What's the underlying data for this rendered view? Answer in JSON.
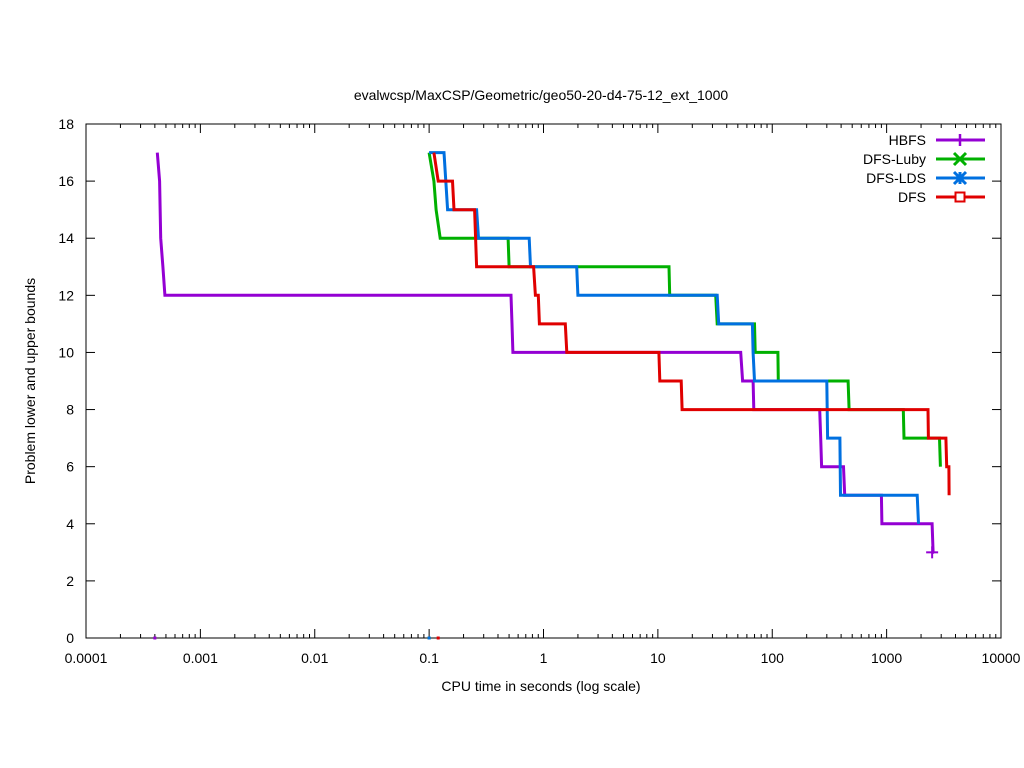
{
  "chart_data": {
    "type": "line",
    "title": "evalwcsp/MaxCSP/Geometric/geo50-20-d4-75-12_ext_1000",
    "xlabel": "CPU time in seconds (log scale)",
    "ylabel": "Problem lower and upper bounds",
    "xscale": "log",
    "xlim": [
      0.0001,
      10000
    ],
    "ylim": [
      0,
      18
    ],
    "x_ticks": [
      {
        "value": 0.0001,
        "label": "0.0001"
      },
      {
        "value": 0.001,
        "label": "0.001"
      },
      {
        "value": 0.01,
        "label": "0.01"
      },
      {
        "value": 0.1,
        "label": "0.1"
      },
      {
        "value": 1,
        "label": "1"
      },
      {
        "value": 10,
        "label": "10"
      },
      {
        "value": 100,
        "label": "100"
      },
      {
        "value": 1000,
        "label": "1000"
      },
      {
        "value": 10000,
        "label": "10000"
      }
    ],
    "y_ticks": [
      {
        "value": 0,
        "label": "0"
      },
      {
        "value": 2,
        "label": "2"
      },
      {
        "value": 4,
        "label": "4"
      },
      {
        "value": 6,
        "label": "6"
      },
      {
        "value": 8,
        "label": "8"
      },
      {
        "value": 10,
        "label": "10"
      },
      {
        "value": 12,
        "label": "12"
      },
      {
        "value": 14,
        "label": "14"
      },
      {
        "value": 16,
        "label": "16"
      },
      {
        "value": 18,
        "label": "18"
      }
    ],
    "legend_position": "top-right",
    "grid": false,
    "series": [
      {
        "name": "HBFS",
        "color": "#9400d3",
        "marker": "plus",
        "lower_bound": {
          "x": 0.0004,
          "y": 0
        },
        "end_marker": {
          "x": 2500,
          "y": 3
        },
        "steps": [
          [
            0.00042,
            17
          ],
          [
            0.00044,
            16
          ],
          [
            0.00045,
            14
          ],
          [
            0.00047,
            13
          ],
          [
            0.00049,
            12
          ],
          [
            0.52,
            12
          ],
          [
            0.53,
            11
          ],
          [
            0.54,
            10
          ],
          [
            53,
            10
          ],
          [
            55,
            9
          ],
          [
            68,
            9
          ],
          [
            69,
            8
          ],
          [
            260,
            8
          ],
          [
            265,
            7
          ],
          [
            270,
            6
          ],
          [
            420,
            6
          ],
          [
            430,
            5
          ],
          [
            900,
            5
          ],
          [
            910,
            4
          ],
          [
            2500,
            4
          ],
          [
            2550,
            3
          ],
          [
            2600,
            3
          ]
        ]
      },
      {
        "name": "DFS-Luby",
        "color": "#00b000",
        "marker": "x",
        "lower_bound": {
          "x": 0.1,
          "y": 0
        },
        "steps": [
          [
            0.1,
            17
          ],
          [
            0.11,
            16
          ],
          [
            0.115,
            15
          ],
          [
            0.125,
            14
          ],
          [
            0.49,
            14
          ],
          [
            0.5,
            13
          ],
          [
            12.5,
            13
          ],
          [
            12.7,
            12
          ],
          [
            32,
            12
          ],
          [
            33,
            11
          ],
          [
            70,
            11
          ],
          [
            71,
            10
          ],
          [
            112,
            10
          ],
          [
            113,
            9
          ],
          [
            460,
            9
          ],
          [
            470,
            8
          ],
          [
            1400,
            8
          ],
          [
            1420,
            7
          ],
          [
            2900,
            7
          ],
          [
            2950,
            6
          ]
        ]
      },
      {
        "name": "DFS-LDS",
        "color": "#0070e0",
        "marker": "star",
        "lower_bound": {
          "x": 0.1,
          "y": 0
        },
        "steps": [
          [
            0.1,
            17
          ],
          [
            0.135,
            17
          ],
          [
            0.14,
            16
          ],
          [
            0.145,
            15
          ],
          [
            0.26,
            15
          ],
          [
            0.27,
            14
          ],
          [
            0.75,
            14
          ],
          [
            0.77,
            13
          ],
          [
            1.95,
            13
          ],
          [
            2,
            12
          ],
          [
            33,
            12
          ],
          [
            34,
            11
          ],
          [
            67,
            11
          ],
          [
            68,
            10
          ],
          [
            70,
            9
          ],
          [
            300,
            9
          ],
          [
            305,
            7
          ],
          [
            390,
            7
          ],
          [
            395,
            5
          ],
          [
            1850,
            5
          ],
          [
            1900,
            4
          ]
        ]
      },
      {
        "name": "DFS",
        "color": "#e00000",
        "marker": "box",
        "lower_bound": {
          "x": 0.12,
          "y": 0
        },
        "steps": [
          [
            0.11,
            17
          ],
          [
            0.12,
            16
          ],
          [
            0.16,
            16
          ],
          [
            0.165,
            15
          ],
          [
            0.25,
            15
          ],
          [
            0.26,
            13
          ],
          [
            0.82,
            13
          ],
          [
            0.85,
            12
          ],
          [
            0.9,
            12
          ],
          [
            0.92,
            11
          ],
          [
            1.55,
            11
          ],
          [
            1.6,
            10
          ],
          [
            10.2,
            10
          ],
          [
            10.4,
            9
          ],
          [
            16,
            9
          ],
          [
            16.3,
            8
          ],
          [
            2300,
            8
          ],
          [
            2320,
            7
          ],
          [
            3300,
            7
          ],
          [
            3350,
            6
          ],
          [
            3500,
            6
          ],
          [
            3520,
            5
          ]
        ]
      }
    ]
  }
}
